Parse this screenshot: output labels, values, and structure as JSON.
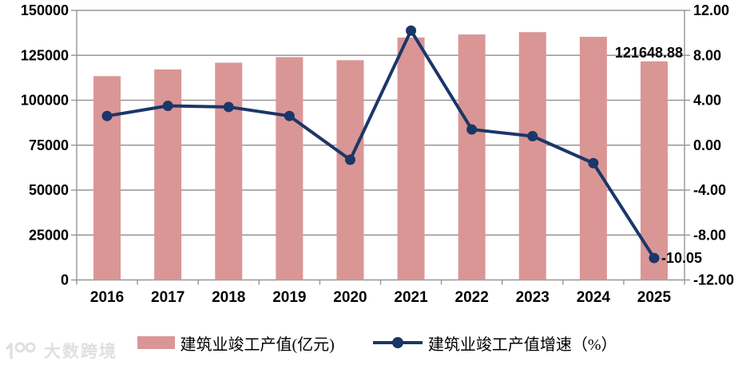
{
  "watermark": {
    "text": "大数跨境"
  },
  "chart_data": {
    "type": "bar+line combo",
    "title": "",
    "categories": [
      "2016",
      "2017",
      "2018",
      "2019",
      "2020",
      "2021",
      "2022",
      "2023",
      "2024",
      "2025"
    ],
    "series": [
      {
        "name": "建筑业竣工产值(亿元)",
        "type": "bar",
        "axis": "left",
        "color": "#d99695",
        "values": [
          113400,
          117100,
          120900,
          124000,
          122300,
          134900,
          136600,
          137900,
          135300,
          121648.88
        ]
      },
      {
        "name": "建筑业竣工产值增速（%）",
        "type": "line",
        "axis": "right",
        "color": "#1b3668",
        "values": [
          2.6,
          3.5,
          3.4,
          2.6,
          -1.3,
          10.2,
          1.4,
          0.8,
          -1.6,
          -10.05
        ]
      }
    ],
    "left_axis": {
      "min": 0,
      "max": 150000,
      "tick_step": 25000,
      "tick_labels": [
        "150000",
        "125000",
        "100000",
        "75000",
        "50000",
        "25000",
        "0"
      ]
    },
    "right_axis": {
      "min": -12,
      "max": 12,
      "tick_step": 4,
      "tick_labels": [
        "12.00",
        "8.00",
        "4.00",
        "0.00",
        "-4.00",
        "-8.00",
        "-12.00"
      ]
    },
    "annotations": [
      {
        "series": 0,
        "index": 9,
        "text": "121648.88"
      },
      {
        "series": 1,
        "index": 9,
        "text": "-10.05"
      }
    ],
    "grid": true,
    "grid_color": "#969696",
    "legend_position": "bottom"
  }
}
